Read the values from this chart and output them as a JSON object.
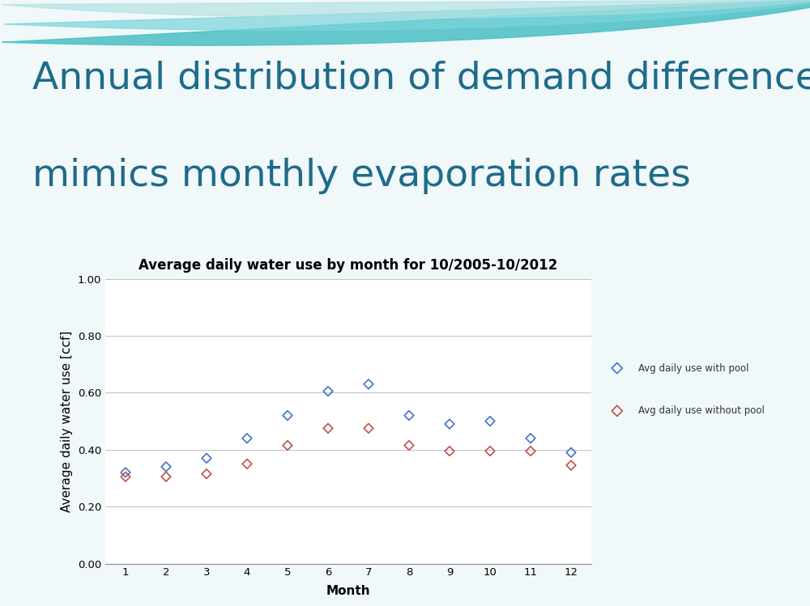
{
  "title_line1": "Annual distribution of demand differences",
  "title_line2": "mimics monthly evaporation rates",
  "chart_title": "Average daily water use by month for 10/2005-10/2012",
  "xlabel": "Month",
  "ylabel": "Average daily water use [ccf]",
  "months": [
    1,
    2,
    3,
    4,
    5,
    6,
    7,
    8,
    9,
    10,
    11,
    12
  ],
  "with_pool": [
    0.32,
    0.34,
    0.37,
    0.44,
    0.52,
    0.605,
    0.63,
    0.52,
    0.49,
    0.5,
    0.44,
    0.39
  ],
  "without_pool": [
    0.305,
    0.305,
    0.315,
    0.35,
    0.415,
    0.475,
    0.475,
    0.415,
    0.395,
    0.395,
    0.395,
    0.345
  ],
  "color_with_pool": "#4472C4",
  "color_without_pool": "#C0504D",
  "ylim": [
    0.0,
    1.0
  ],
  "yticks": [
    0.0,
    0.2,
    0.4,
    0.6,
    0.8,
    1.0
  ],
  "ytick_labels": [
    "0.00",
    "0.20",
    "0.40",
    "0.60",
    "0.80",
    "1.00"
  ],
  "xticks": [
    1,
    2,
    3,
    4,
    5,
    6,
    7,
    8,
    9,
    10,
    11,
    12
  ],
  "title_color": "#1F6B8A",
  "background_color": "#FFFFFF",
  "slide_bg": "#F0F8FA",
  "legend_label_with": "Avg daily use with pool",
  "legend_label_without": "Avg daily use without pool",
  "marker_size": 8,
  "title_fontsize": 34,
  "chart_title_fontsize": 12,
  "axis_label_fontsize": 11,
  "wave_color1": "#4BBFC4",
  "wave_color2": "#7AD4DB",
  "wave_color3": "#AADEDF"
}
